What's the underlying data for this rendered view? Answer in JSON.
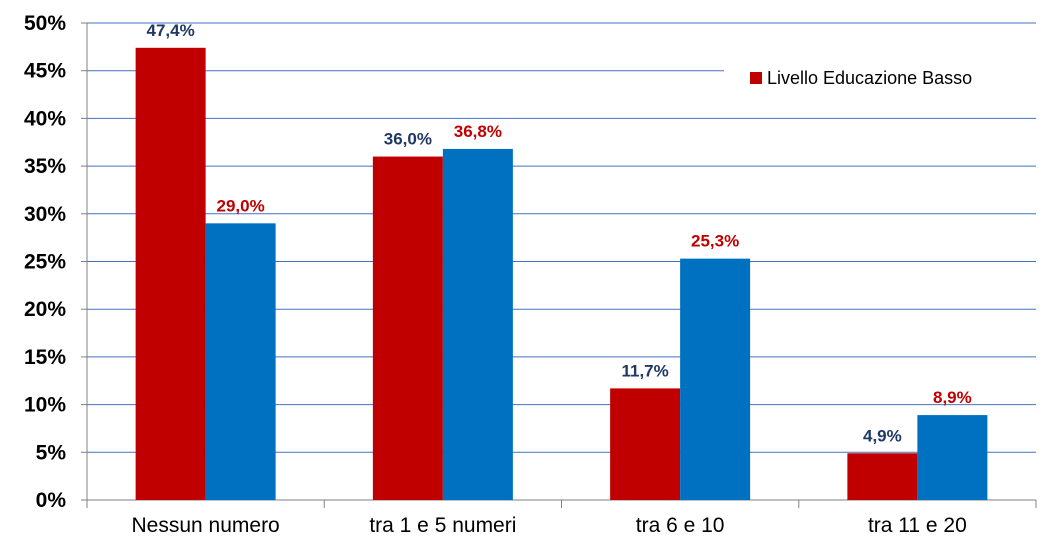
{
  "chart_data": {
    "type": "bar",
    "categories": [
      "Nessun numero",
      "tra 1 e 5 numeri",
      "tra 6 e 10",
      "tra 11 e 20"
    ],
    "series": [
      {
        "name": "Livello Educazione Basso",
        "values": [
          47.4,
          36.0,
          11.7,
          4.9
        ],
        "labels": [
          "47,4%",
          "36,0%",
          "11,7%",
          "4,9%"
        ]
      },
      {
        "values": [
          29.0,
          36.8,
          25.3,
          8.9
        ],
        "labels": [
          "29,0%",
          "36,8%",
          "25,3%",
          "8,9%"
        ]
      }
    ],
    "y_ticks": [
      "0%",
      "5%",
      "10%",
      "15%",
      "20%",
      "25%",
      "30%",
      "35%",
      "40%",
      "45%",
      "50%"
    ],
    "ylim": [
      0,
      50
    ],
    "grid": true,
    "legend_position": "top-right"
  },
  "colors": {
    "series_fill": [
      "#C00000",
      "#0070C0"
    ],
    "label_text": [
      "#1F3864",
      "#C00000"
    ],
    "gridline": "#4472C4",
    "axis": "#808080"
  },
  "legend": {
    "label": "Livello Educazione Basso"
  }
}
